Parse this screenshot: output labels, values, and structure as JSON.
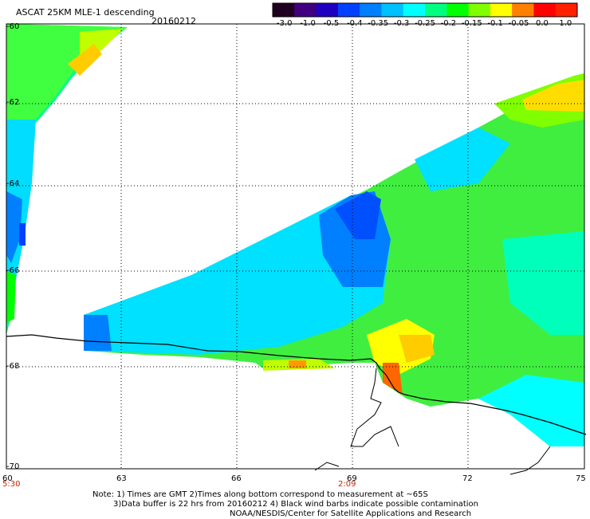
{
  "header": {
    "title": "ASCAT 25KM MLE-1 descending",
    "date": "20160212"
  },
  "colorbar": {
    "tick_labels": [
      "-3.0",
      "-1.0",
      "-0.5",
      "-0.4",
      "-0.35",
      "-0.3",
      "-0.25",
      "-0.2",
      "-0.15",
      "-0.1",
      "-0.05",
      "0.0",
      "1.0"
    ],
    "colors": [
      "#200020",
      "#400080",
      "#2000c0",
      "#0040ff",
      "#0080ff",
      "#00c0ff",
      "#00ffff",
      "#00ff80",
      "#00ff00",
      "#80ff00",
      "#ffff00",
      "#ff8000",
      "#ff0000",
      "#ff2000"
    ]
  },
  "axes": {
    "lat_labels": [
      "-60",
      "-62",
      "-64",
      "-66",
      "-68",
      "-70"
    ],
    "lon_labels": [
      "60",
      "63",
      "66",
      "69",
      "72",
      "75"
    ]
  },
  "time_labels": [
    "5:30",
    "2:09"
  ],
  "notes": {
    "line1": "Note: 1) Times are GMT 2)Times along bottom correspond to measurement at ~65S",
    "line2": "3)Data buffer is 22 hrs from 20160212 4) Black wind barbs indicate possible contamination",
    "line3": "NOAA/NESDIS/Center for Satellite Applications and Research"
  }
}
